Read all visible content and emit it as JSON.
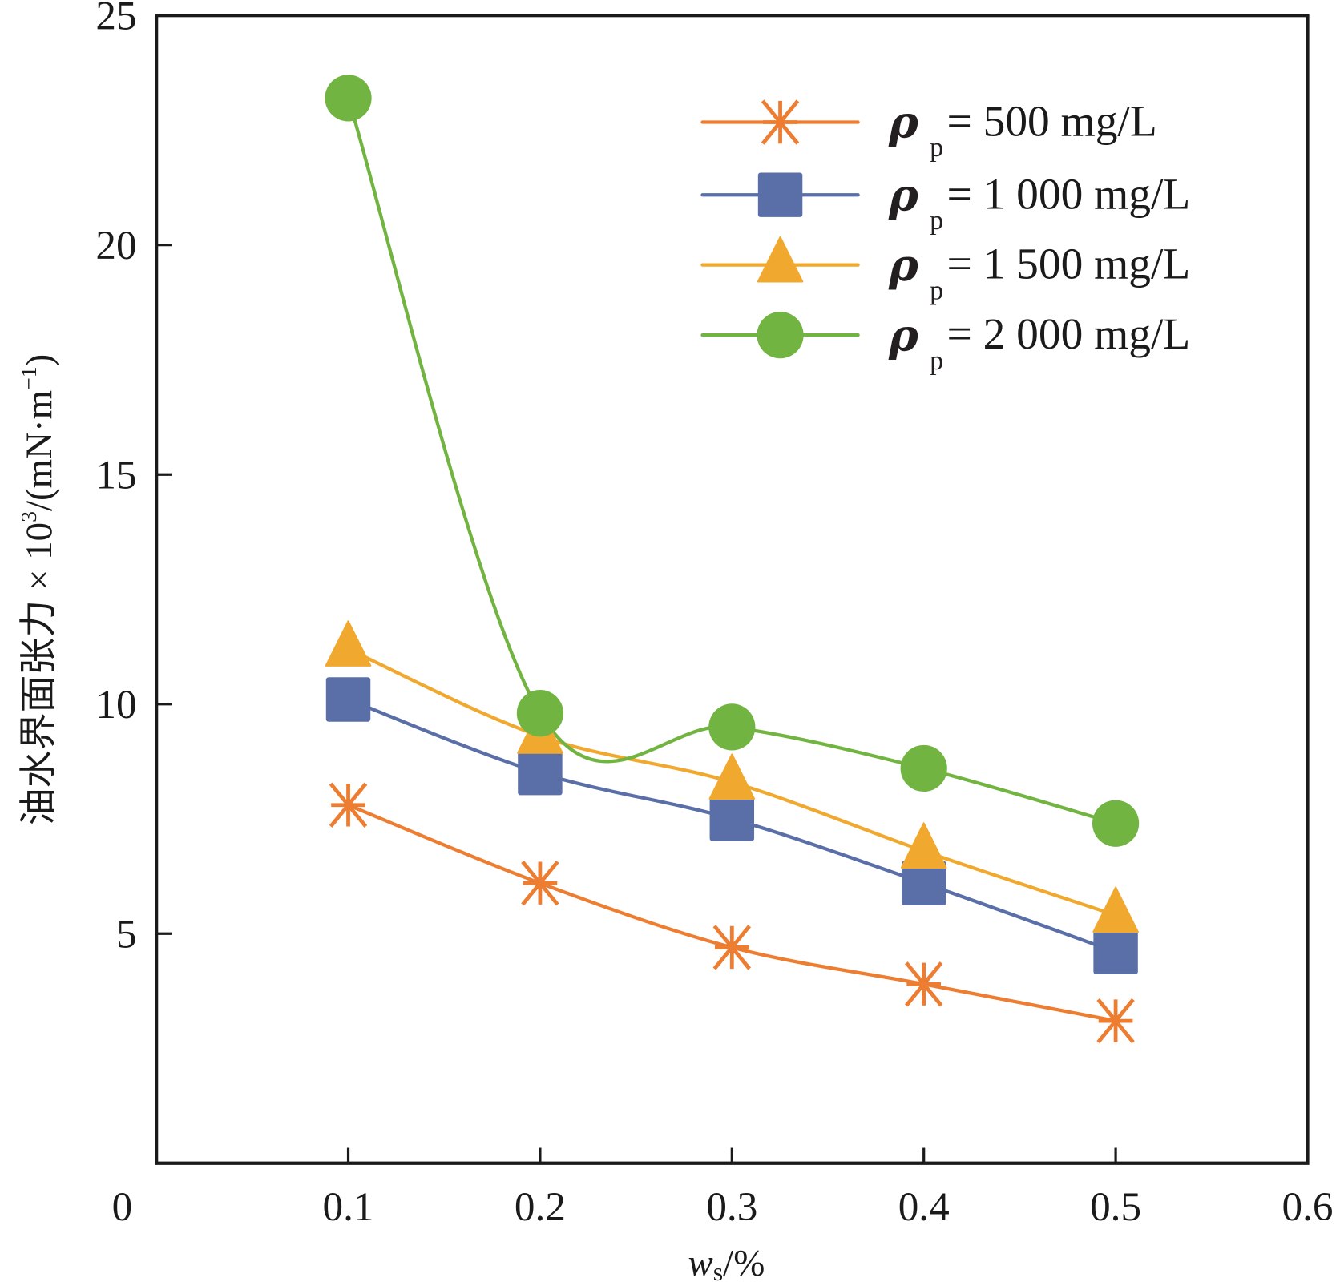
{
  "chart_data": {
    "type": "line",
    "title": "",
    "xlabel": "w_s/%",
    "xlabel_parts": {
      "main": "w",
      "sub": "s",
      "rest": "/%"
    },
    "ylabel": "油水界面张力×10³/(mN·m⁻¹)",
    "ylabel_parts": {
      "cjk": "油水界面张力",
      "times": " × 10",
      "sup": "3",
      "unit": "/(mN·m",
      "unit_sup": "−1",
      "close": ")"
    },
    "xlim": [
      0,
      0.6
    ],
    "ylim": [
      0,
      25
    ],
    "x_ticks": [
      0,
      0.1,
      0.2,
      0.3,
      0.4,
      0.5,
      0.6
    ],
    "x_tick_labels": [
      "0",
      "0.1",
      "0.2",
      "0.3",
      "0.4",
      "0.5",
      "0.6"
    ],
    "y_ticks": [
      5,
      10,
      15,
      20,
      25
    ],
    "y_tick_labels": [
      "5",
      "10",
      "15",
      "20",
      "25"
    ],
    "grid": false,
    "legend_position": "top-right",
    "x": [
      0.1,
      0.2,
      0.3,
      0.4,
      0.5
    ],
    "series": [
      {
        "name": "ρp = 500 mg/L",
        "legend_value": "= 500 mg/L",
        "marker": "asterisk",
        "color": "#ed7d31",
        "values": [
          7.8,
          6.1,
          4.7,
          3.9,
          3.1
        ]
      },
      {
        "name": "ρp = 1 000 mg/L",
        "legend_value": "= 1 000 mg/L",
        "marker": "square",
        "color": "#5a6ea8",
        "values": [
          10.1,
          8.5,
          7.5,
          6.1,
          4.6
        ]
      },
      {
        "name": "ρp = 1 500 mg/L",
        "legend_value": "= 1 500 mg/L",
        "marker": "triangle",
        "color": "#f0a92e",
        "values": [
          11.2,
          9.3,
          8.3,
          6.8,
          5.4
        ]
      },
      {
        "name": "ρp = 2 000 mg/L",
        "legend_value": "= 2 000 mg/L",
        "marker": "circle",
        "color": "#72b441",
        "values": [
          23.2,
          9.8,
          9.5,
          8.6,
          7.4
        ]
      }
    ],
    "legend_symbol": {
      "rho": "ρ",
      "sub": "p"
    }
  }
}
